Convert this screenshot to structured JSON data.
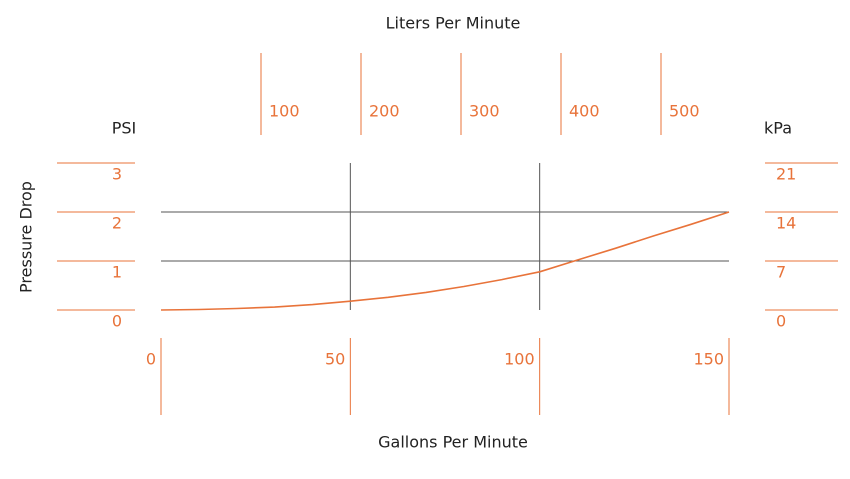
{
  "chart_data": {
    "type": "line",
    "x_label": "Gallons Per Minute",
    "y_label": "Pressure Drop",
    "y_unit": "PSI",
    "x2_label": "Liters Per Minute",
    "y2_unit": "kPa",
    "x": [
      0,
      10,
      20,
      30,
      40,
      50,
      60,
      70,
      80,
      90,
      100,
      110,
      120,
      130,
      140,
      150
    ],
    "values": [
      0,
      0.01,
      0.03,
      0.06,
      0.11,
      0.18,
      0.26,
      0.36,
      0.48,
      0.62,
      0.78,
      1.02,
      1.26,
      1.51,
      1.75,
      2.0
    ],
    "color": "#e8733a",
    "xlim": [
      0,
      150
    ],
    "xticks": [
      0,
      50,
      100,
      150
    ],
    "ylim": [
      0,
      3
    ],
    "yticks": [
      0,
      1,
      2,
      3
    ],
    "x2lim": [
      0,
      568
    ],
    "x2ticks": [
      100,
      200,
      300,
      400,
      500
    ],
    "y2lim": [
      0,
      21
    ],
    "y2ticks": [
      0,
      7,
      14,
      21
    ],
    "grid": true
  }
}
